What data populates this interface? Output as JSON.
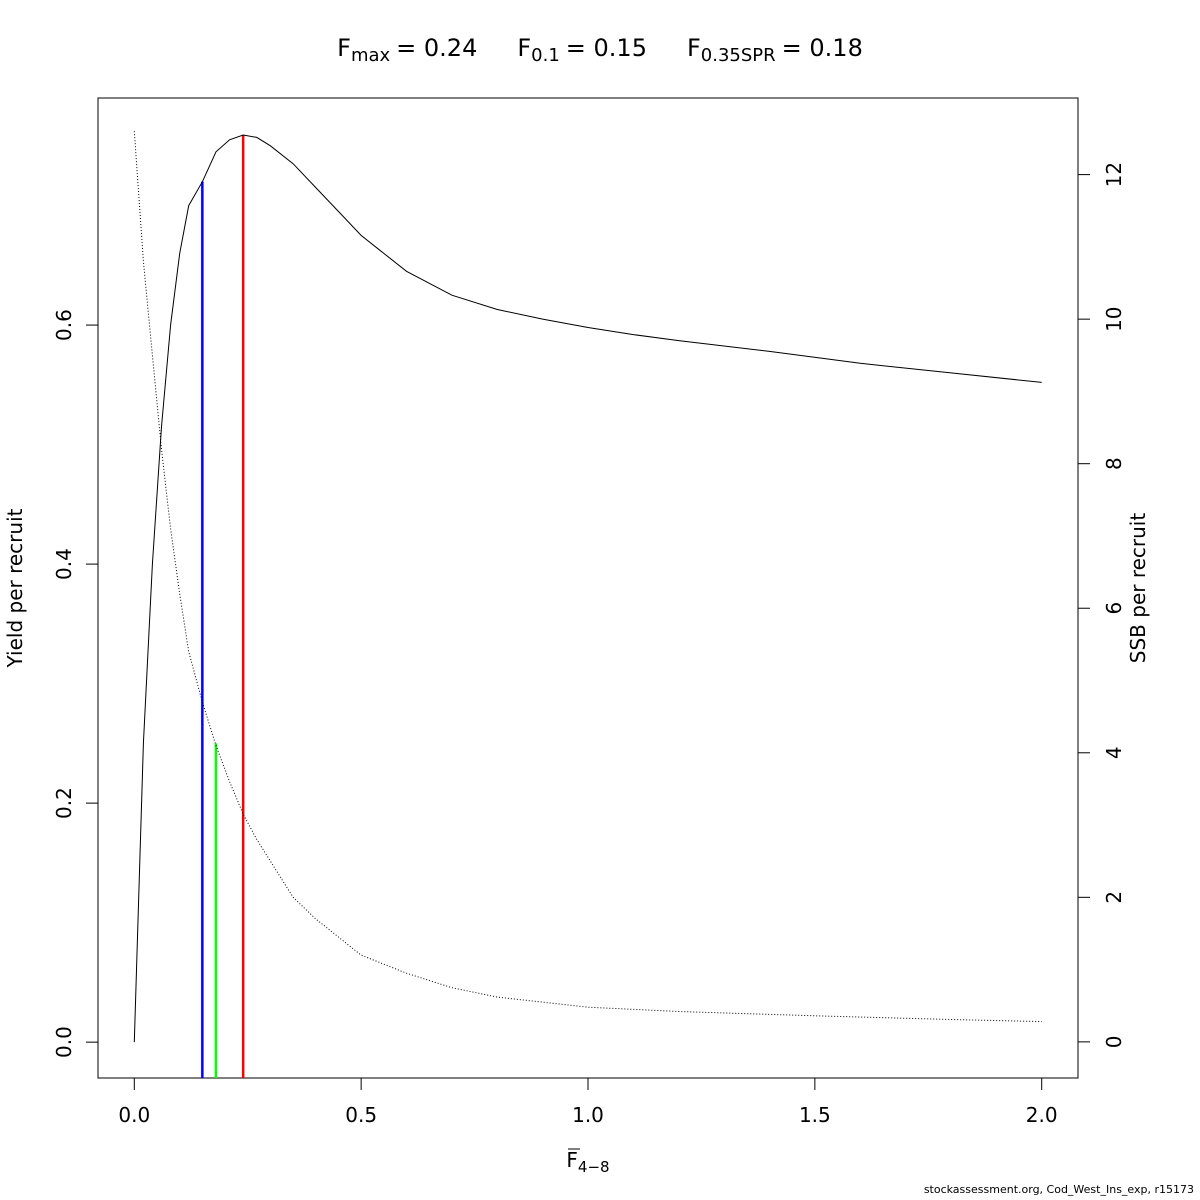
{
  "title": {
    "fmax_label": "F",
    "fmax_sub": "max",
    "fmax_value": "= 0.24",
    "f01_label": "F",
    "f01_sub": "0.1",
    "f01_value": "= 0.15",
    "fspr_label": "F",
    "fspr_sub": "0.35SPR",
    "fspr_value": "= 0.18"
  },
  "chart_data": {
    "type": "line",
    "xlabel_main": "F",
    "xlabel_sub": "4−8",
    "ylabel_left": "Yield per recruit",
    "ylabel_right": "SSB per recruit",
    "xlim": [
      -0.08,
      2.08
    ],
    "ylim_left": [
      -0.03,
      0.79
    ],
    "ylim_right": [
      -0.5,
      13.06
    ],
    "x_ticks": [
      0.0,
      0.5,
      1.0,
      1.5,
      2.0
    ],
    "x_tick_labels": [
      "0.0",
      "0.5",
      "1.0",
      "1.5",
      "2.0"
    ],
    "y_left_ticks": [
      0.0,
      0.2,
      0.4,
      0.6
    ],
    "y_left_tick_labels": [
      "0.0",
      "0.2",
      "0.4",
      "0.6"
    ],
    "y_right_ticks": [
      0,
      2,
      4,
      6,
      8,
      10,
      12
    ],
    "y_right_tick_labels": [
      "0",
      "2",
      "4",
      "6",
      "8",
      "10",
      "12"
    ],
    "grid": false,
    "series": [
      {
        "axis": "left",
        "style": "solid",
        "color": "#000000",
        "x": [
          0.0,
          0.02,
          0.04,
          0.06,
          0.08,
          0.1,
          0.12,
          0.15,
          0.18,
          0.21,
          0.24,
          0.27,
          0.3,
          0.35,
          0.4,
          0.45,
          0.5,
          0.6,
          0.7,
          0.8,
          0.9,
          1.0,
          1.1,
          1.2,
          1.4,
          1.6,
          1.8,
          2.0
        ],
        "y": [
          0.0,
          0.25,
          0.4,
          0.515,
          0.6,
          0.66,
          0.7,
          0.72,
          0.745,
          0.755,
          0.759,
          0.757,
          0.75,
          0.735,
          0.715,
          0.695,
          0.675,
          0.645,
          0.625,
          0.613,
          0.605,
          0.598,
          0.592,
          0.587,
          0.578,
          0.568,
          0.56,
          0.552
        ]
      },
      {
        "axis": "right",
        "style": "dotted",
        "color": "#000000",
        "x": [
          0.0,
          0.02,
          0.04,
          0.06,
          0.08,
          0.1,
          0.12,
          0.15,
          0.18,
          0.21,
          0.24,
          0.27,
          0.3,
          0.35,
          0.4,
          0.5,
          0.6,
          0.7,
          0.8,
          1.0,
          1.2,
          1.5,
          1.8,
          2.0
        ],
        "y": [
          12.6,
          10.8,
          9.5,
          8.2,
          7.1,
          6.2,
          5.4,
          4.7,
          4.1,
          3.6,
          3.15,
          2.8,
          2.5,
          2.0,
          1.7,
          1.2,
          0.95,
          0.75,
          0.62,
          0.48,
          0.42,
          0.36,
          0.31,
          0.28
        ]
      }
    ],
    "reference_lines": [
      {
        "name": "F0.1",
        "x": 0.15,
        "y_top": 0.72,
        "color": "#0000ff"
      },
      {
        "name": "F0.35SPR",
        "x": 0.18,
        "y_top": 0.25,
        "color": "#00ff00"
      },
      {
        "name": "Fmax",
        "x": 0.24,
        "y_top": 0.759,
        "color": "#ff0000"
      }
    ]
  },
  "credit": "stockassessment.org, Cod_West_Ins_exp, r15173"
}
